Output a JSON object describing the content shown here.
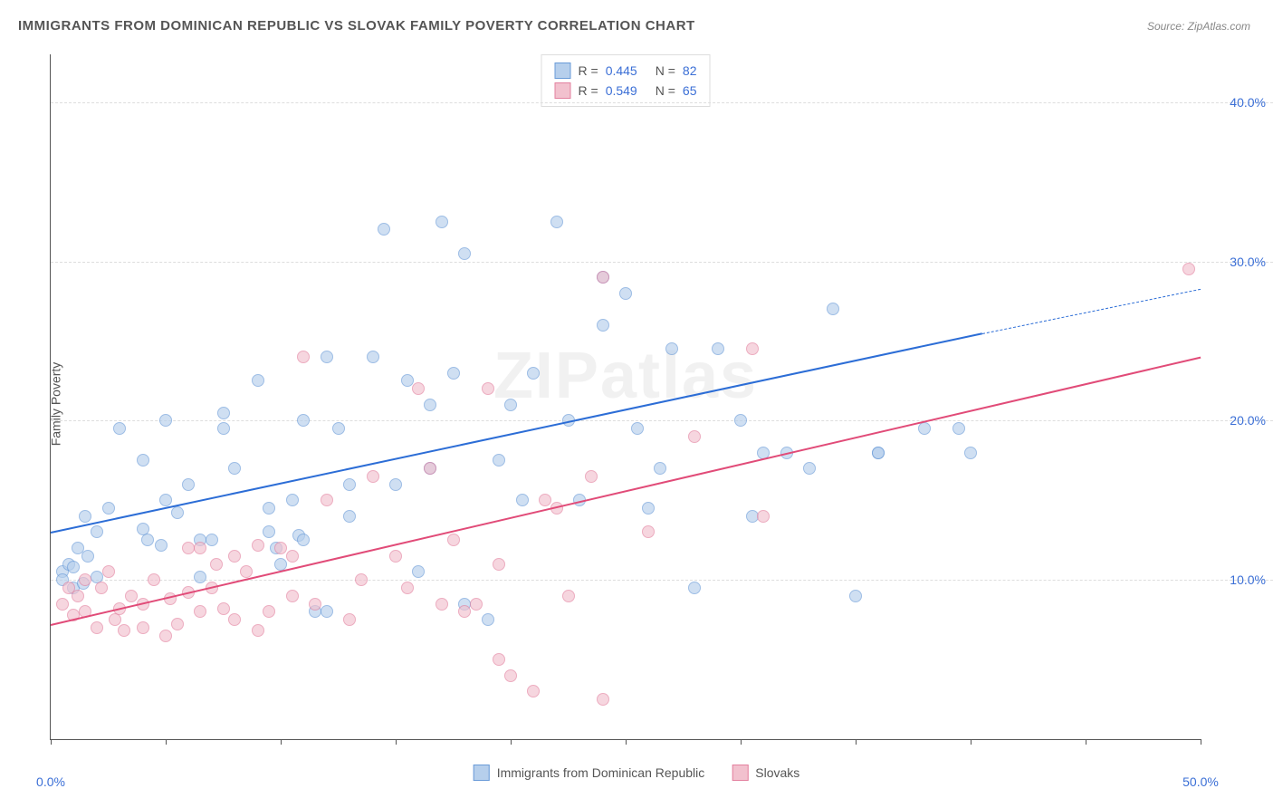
{
  "title": "IMMIGRANTS FROM DOMINICAN REPUBLIC VS SLOVAK FAMILY POVERTY CORRELATION CHART",
  "source": "Source: ZipAtlas.com",
  "ylabel": "Family Poverty",
  "watermark": "ZIPatlas",
  "chart": {
    "type": "scatter",
    "xlim": [
      0,
      50
    ],
    "ylim": [
      0,
      43
    ],
    "x_min_label": "0.0%",
    "x_max_label": "50.0%",
    "y_ticks": [
      10,
      20,
      30,
      40
    ],
    "y_tick_labels": [
      "10.0%",
      "20.0%",
      "30.0%",
      "40.0%"
    ],
    "x_tick_positions": [
      0,
      5,
      10,
      15,
      20,
      25,
      30,
      35,
      40,
      45,
      50
    ],
    "background_color": "#ffffff",
    "grid_color": "#dddddd",
    "axis_color": "#555555",
    "tick_label_color": "#3b6fd6",
    "point_radius": 7,
    "series": [
      {
        "name": "Immigrants from Dominican Republic",
        "short": "dominican",
        "fill": "#b6cfec",
        "stroke": "#6a9bd8",
        "trend_color": "#2c6dd6",
        "R": "0.445",
        "N": "82",
        "trend": {
          "x1": 0,
          "y1": 13.0,
          "x2": 40.5,
          "y2": 25.5
        },
        "trend_dashed": {
          "x1": 40.5,
          "y1": 25.5,
          "x2": 50,
          "y2": 28.3
        },
        "points": [
          [
            0.5,
            10.5
          ],
          [
            0.5,
            10
          ],
          [
            0.8,
            11
          ],
          [
            1,
            9.5
          ],
          [
            1,
            10.8
          ],
          [
            1.2,
            12
          ],
          [
            1.4,
            9.8
          ],
          [
            1.5,
            14
          ],
          [
            1.6,
            11.5
          ],
          [
            2,
            10.2
          ],
          [
            2,
            13
          ],
          [
            2.5,
            14.5
          ],
          [
            4,
            13.2
          ],
          [
            4.2,
            12.5
          ],
          [
            4,
            17.5
          ],
          [
            3,
            19.5
          ],
          [
            5,
            15
          ],
          [
            4.8,
            12.2
          ],
          [
            5.5,
            14.2
          ],
          [
            5,
            20
          ],
          [
            6,
            16
          ],
          [
            6.5,
            12.5
          ],
          [
            6.5,
            10.2
          ],
          [
            7.5,
            19.5
          ],
          [
            7,
            12.5
          ],
          [
            7.5,
            20.5
          ],
          [
            8,
            17
          ],
          [
            9.5,
            14.5
          ],
          [
            9.5,
            13
          ],
          [
            9.8,
            12
          ],
          [
            9,
            22.5
          ],
          [
            10,
            11
          ],
          [
            10.5,
            15
          ],
          [
            10.8,
            12.8
          ],
          [
            11,
            12.5
          ],
          [
            11.5,
            8
          ],
          [
            12,
            8
          ],
          [
            11,
            20
          ],
          [
            12,
            24
          ],
          [
            12.5,
            19.5
          ],
          [
            13,
            14
          ],
          [
            13,
            16
          ],
          [
            14,
            24
          ],
          [
            15,
            16
          ],
          [
            14.5,
            32
          ],
          [
            15.5,
            22.5
          ],
          [
            16,
            10.5
          ],
          [
            16.5,
            17
          ],
          [
            16.5,
            21
          ],
          [
            17,
            32.5
          ],
          [
            17.5,
            23
          ],
          [
            18,
            30.5
          ],
          [
            18,
            8.5
          ],
          [
            19,
            7.5
          ],
          [
            19.5,
            17.5
          ],
          [
            20,
            21
          ],
          [
            20.5,
            15
          ],
          [
            21,
            23
          ],
          [
            22,
            32.5
          ],
          [
            22.5,
            20
          ],
          [
            23,
            15
          ],
          [
            24,
            26
          ],
          [
            24,
            29
          ],
          [
            25,
            28
          ],
          [
            25.5,
            19.5
          ],
          [
            26,
            14.5
          ],
          [
            26.5,
            17
          ],
          [
            27,
            24.5
          ],
          [
            28,
            9.5
          ],
          [
            29,
            24.5
          ],
          [
            30,
            20
          ],
          [
            30.5,
            14
          ],
          [
            31,
            18
          ],
          [
            32,
            18
          ],
          [
            33,
            17
          ],
          [
            34,
            27
          ],
          [
            36,
            18
          ],
          [
            36,
            18
          ],
          [
            38,
            19.5
          ],
          [
            39.5,
            19.5
          ],
          [
            35,
            9
          ],
          [
            40,
            18
          ]
        ]
      },
      {
        "name": "Slovaks",
        "short": "slovaks",
        "fill": "#f2c1ce",
        "stroke": "#e3819f",
        "trend_color": "#e14b78",
        "R": "0.549",
        "N": "65",
        "trend": {
          "x1": 0,
          "y1": 7.2,
          "x2": 50,
          "y2": 24.0
        },
        "points": [
          [
            0.5,
            8.5
          ],
          [
            0.8,
            9.5
          ],
          [
            1,
            7.8
          ],
          [
            1.2,
            9
          ],
          [
            1.5,
            10
          ],
          [
            1.5,
            8
          ],
          [
            2,
            7
          ],
          [
            2.2,
            9.5
          ],
          [
            2.5,
            10.5
          ],
          [
            2.8,
            7.5
          ],
          [
            3,
            8.2
          ],
          [
            3.2,
            6.8
          ],
          [
            3.5,
            9
          ],
          [
            4,
            8.5
          ],
          [
            4,
            7
          ],
          [
            4.5,
            10
          ],
          [
            5,
            6.5
          ],
          [
            5.2,
            8.8
          ],
          [
            5.5,
            7.2
          ],
          [
            6,
            9.2
          ],
          [
            6,
            12
          ],
          [
            6.5,
            8
          ],
          [
            6.5,
            12
          ],
          [
            7,
            9.5
          ],
          [
            7.2,
            11
          ],
          [
            7.5,
            8.2
          ],
          [
            8,
            7.5
          ],
          [
            8,
            11.5
          ],
          [
            8.5,
            10.5
          ],
          [
            9,
            6.8
          ],
          [
            9,
            12.2
          ],
          [
            9.5,
            8
          ],
          [
            10,
            12
          ],
          [
            10.5,
            9
          ],
          [
            10.5,
            11.5
          ],
          [
            11,
            24
          ],
          [
            11.5,
            8.5
          ],
          [
            12,
            15
          ],
          [
            13,
            7.5
          ],
          [
            13.5,
            10
          ],
          [
            14,
            16.5
          ],
          [
            15,
            11.5
          ],
          [
            15.5,
            9.5
          ],
          [
            16,
            22
          ],
          [
            16.5,
            17
          ],
          [
            17,
            8.5
          ],
          [
            17.5,
            12.5
          ],
          [
            18,
            8
          ],
          [
            18.5,
            8.5
          ],
          [
            19,
            22
          ],
          [
            19.5,
            5
          ],
          [
            19.5,
            11
          ],
          [
            20,
            4
          ],
          [
            21,
            3
          ],
          [
            21.5,
            15
          ],
          [
            22,
            14.5
          ],
          [
            22.5,
            9
          ],
          [
            23.5,
            16.5
          ],
          [
            24,
            29
          ],
          [
            24,
            2.5
          ],
          [
            26,
            13
          ],
          [
            30.5,
            24.5
          ],
          [
            31,
            14
          ],
          [
            28,
            19
          ],
          [
            49.5,
            29.5
          ]
        ]
      }
    ]
  },
  "legend_r_label": "R =",
  "legend_n_label": "N ="
}
